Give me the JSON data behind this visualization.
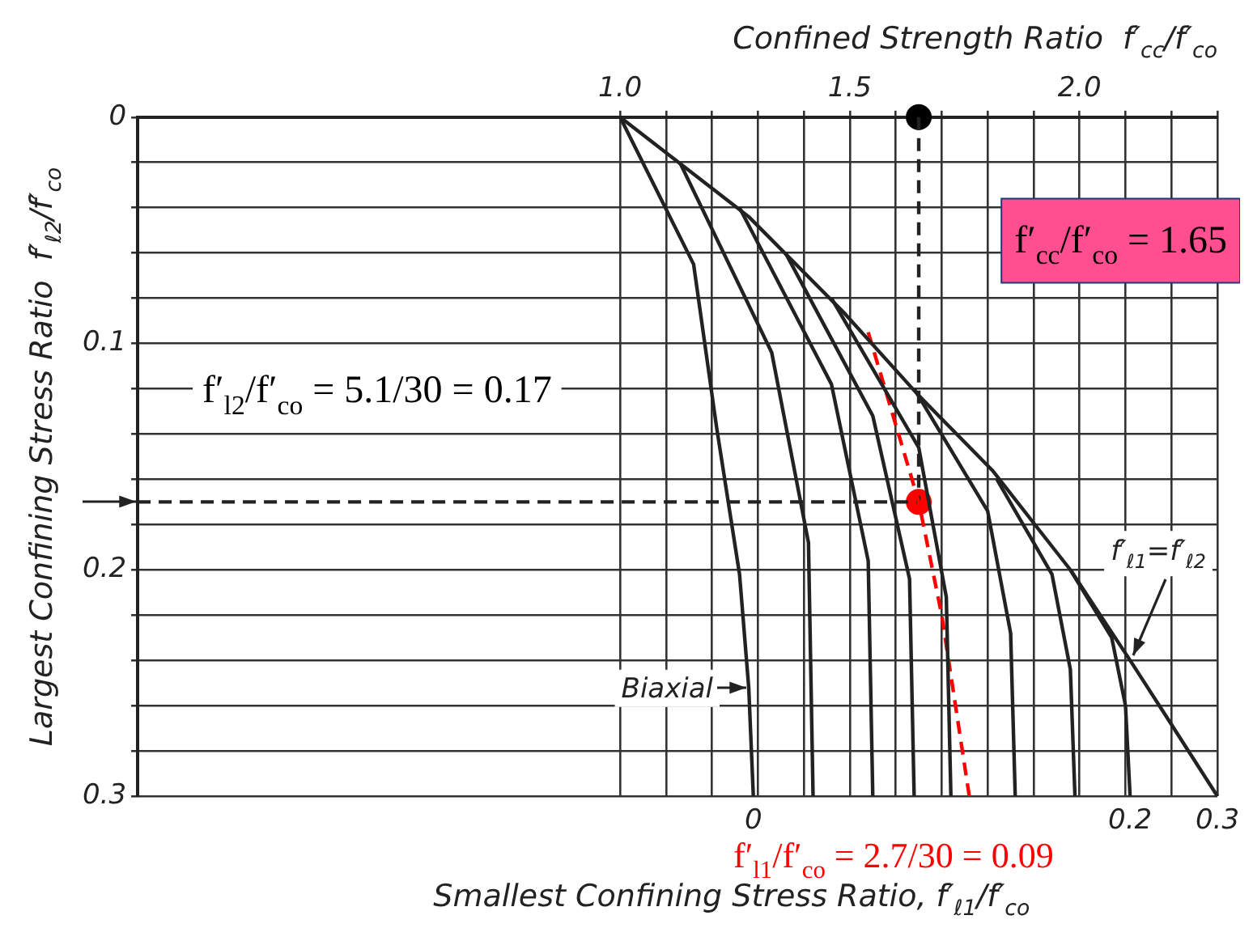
{
  "chart_data": {
    "type": "line",
    "xlabel": "Confined Strength Ratio  f′$_{cc}$/f′$_{co}$",
    "ylabel": "Largest Confining Stress Ratio  f′$_{ℓ2}$/f′$_{co}$",
    "xlim": [
      -0.05,
      2.3
    ],
    "xticks": [
      {
        "value": 1,
        "label": "1.0"
      },
      {
        "value": 1.1,
        "label": null
      },
      {
        "value": 1.2,
        "label": null
      },
      {
        "value": 1.3,
        "label": null
      },
      {
        "value": 1.4,
        "label": null
      },
      1.5,
      {
        "value": 1.6,
        "label": null
      },
      {
        "value": 1.7,
        "label": null
      },
      {
        "value": 1.8,
        "label": null
      },
      {
        "value": 1.9,
        "label": null
      },
      {
        "value": 2,
        "label": "2.0"
      },
      {
        "value": 2.1,
        "label": null
      },
      {
        "value": 2.2,
        "label": null
      },
      {
        "value": 2.3,
        "label": null
      }
    ],
    "ylim": [
      0.3,
      0
    ],
    "yticks": [
      0,
      {
        "value": 0.02,
        "label": null
      },
      {
        "value": 0.04,
        "label": null
      },
      {
        "value": 0.06,
        "label": null
      },
      {
        "value": 0.08,
        "label": null
      },
      0.1,
      {
        "value": 0.12,
        "label": null
      },
      {
        "value": 0.14,
        "label": null
      },
      {
        "value": 0.16,
        "label": null
      },
      {
        "value": 0.18,
        "label": null
      },
      0.2,
      {
        "value": 0.22,
        "label": null
      },
      {
        "value": 0.24,
        "label": null
      },
      {
        "value": 0.26,
        "label": null
      },
      {
        "value": 0.28,
        "label": null
      },
      0.3
    ],
    "grid": true,
    "legend": false,
    "marker": "none",
    "line_style": "solid",
    "series": [
      {
        "color": "#222222",
        "x": [
          1.0,
          1.28,
          1.49,
          1.65,
          1.81,
          1.98,
          2.11,
          2.18,
          2.3
        ],
        "values": [
          0,
          0.044,
          0.087,
          0.123,
          0.156,
          0.2,
          0.24,
          0.262,
          0.3
        ]
      },
      {
        "color": "#222222",
        "x": [
          1.0,
          1.16,
          1.21,
          1.26,
          1.28,
          1.29
        ],
        "values": [
          0,
          0.065,
          0.137,
          0.202,
          0.252,
          0.3
        ]
      },
      {
        "color": "#222222",
        "x": [
          1.13,
          1.33,
          1.41,
          1.42
        ],
        "values": [
          0.02,
          0.104,
          0.188,
          0.3
        ]
      },
      {
        "color": "#222222",
        "x": [
          1.26,
          1.46,
          1.54,
          1.55
        ],
        "values": [
          0.04,
          0.118,
          0.196,
          0.3
        ]
      },
      {
        "color": "#222222",
        "x": [
          1.36,
          1.55,
          1.63,
          1.64
        ],
        "values": [
          0.06,
          0.132,
          0.204,
          0.3
        ]
      },
      {
        "color": "#222222",
        "x": [
          1.46,
          1.65,
          1.71,
          1.72
        ],
        "values": [
          0.08,
          0.146,
          0.212,
          0.3
        ]
      },
      {
        "color": "#222222",
        "x": [
          1.64,
          1.8,
          1.85,
          1.86
        ],
        "values": [
          0.12,
          0.174,
          0.228,
          0.3
        ]
      },
      {
        "color": "#222222",
        "x": [
          1.82,
          1.94,
          1.98,
          1.99
        ],
        "values": [
          0.16,
          0.202,
          0.244,
          0.3
        ]
      },
      {
        "color": "#222222",
        "x": [
          1.98,
          2.07,
          2.1,
          2.11
        ],
        "values": [
          0.2,
          0.23,
          0.26,
          0.3
        ]
      },
      {
        "color": "#ff0000",
        "line_style": "dashed",
        "x": [
          1.54,
          1.65,
          1.7,
          1.76
        ],
        "values": [
          0.095,
          0.17,
          0.22,
          0.3
        ]
      },
      {
        "color": "#222222",
        "line_style": "dashed",
        "x": [
          1.65,
          1.65
        ],
        "values": [
          0,
          0.17
        ]
      },
      {
        "color": "#222222",
        "line_style": "dashed",
        "x": [
          -0.05,
          1.65
        ],
        "values": [
          0.17,
          0.17
        ]
      },
      {
        "type": "scatter",
        "marker": "circle",
        "color": "#000000",
        "x": [
          1.65
        ],
        "values": [
          0
        ]
      },
      {
        "type": "scatter",
        "marker": "circle",
        "color": "#ff0000",
        "x": [
          1.65
        ],
        "values": [
          0.17
        ]
      }
    ],
    "annotations": [
      "f′$_{l2}$/f′$_{co}$ = 5.1/30 = 0.17",
      "f′$_{cc}$/f′$_{co}$ = 1.65",
      "f′$_{l1}$/f′$_{co}$ = 2.7/30 = 0.09",
      "Smallest Confining Stress Ratio, f′$_{ℓ1}$/f′$_{co}$",
      {
        "text": "Biaxial",
        "x": 1.28,
        "y": 0.252
      },
      {
        "text": "f′$_{ℓ1}$=f′$_{ℓ2}$",
        "x": 2.11,
        "y": 0.24
      },
      {
        "text": "0",
        "x": 1.29,
        "y": 0.3
      },
      {
        "text": "0.2",
        "x": 2.11,
        "y": 0.3
      },
      {
        "text": "0.3",
        "x": 2.3,
        "y": 0.3
      }
    ]
  }
}
